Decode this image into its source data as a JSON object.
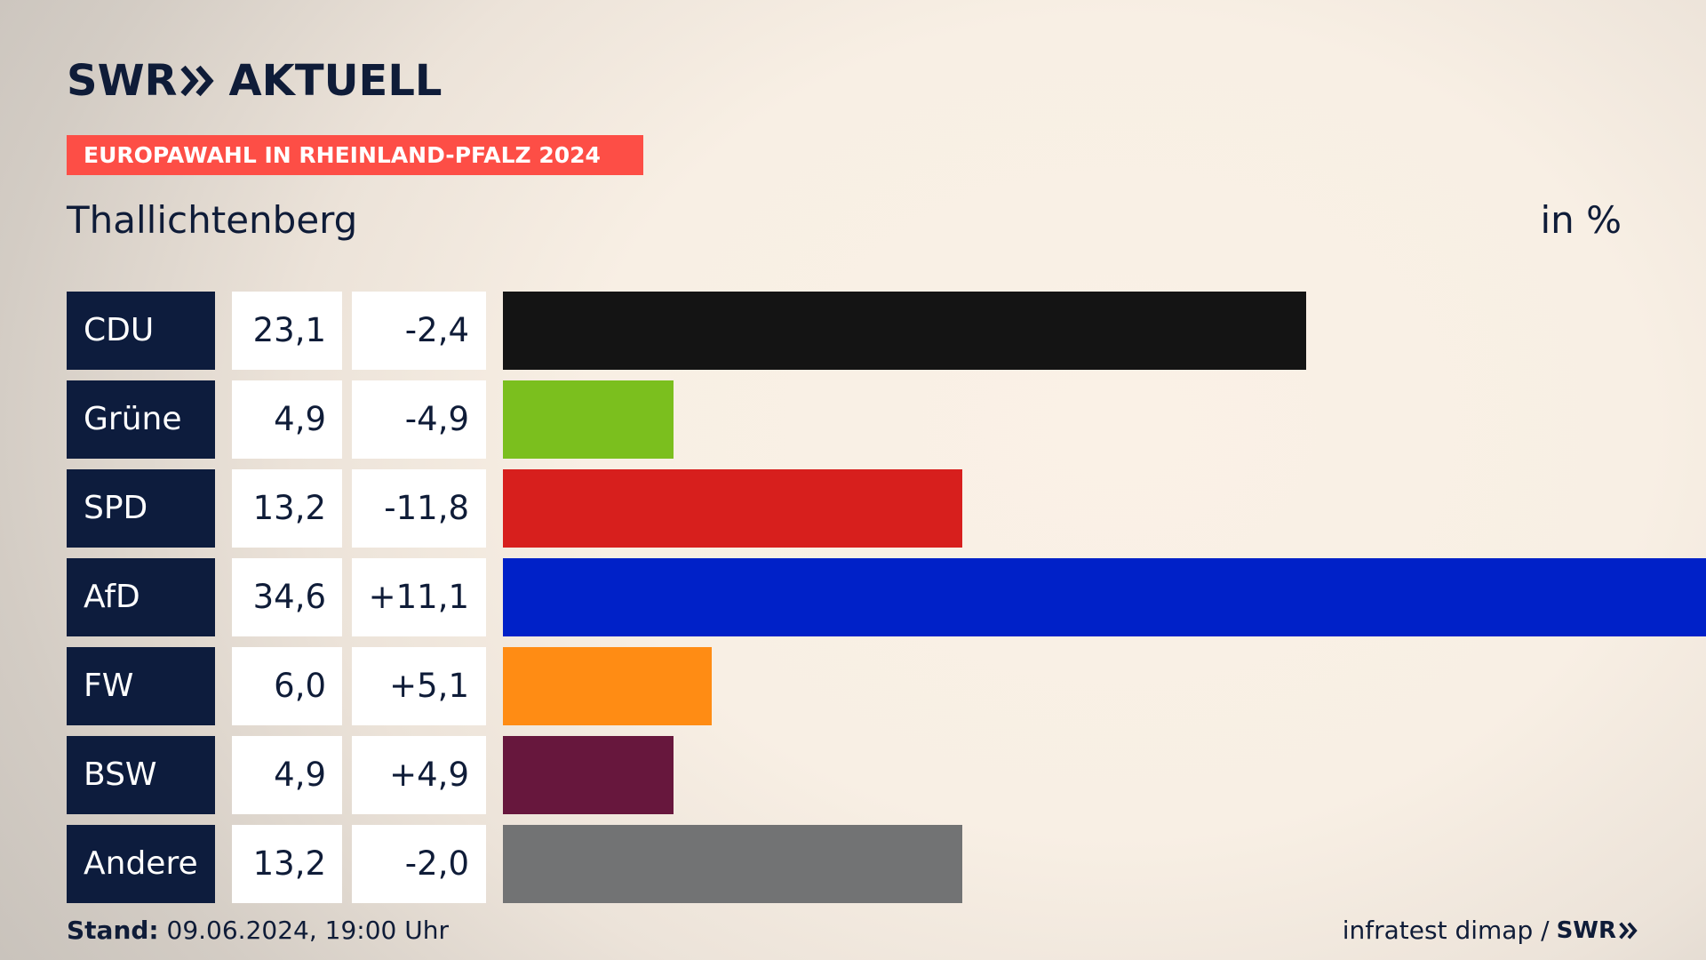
{
  "logo": {
    "brand": "SWR",
    "product": "AKTUELL"
  },
  "banner": "EUROPAWAHL IN RHEINLAND-PFALZ 2024",
  "place": "Thallichtenberg",
  "unit": "in %",
  "chart_data": {
    "type": "bar",
    "orientation": "horizontal",
    "title": "Thallichtenberg",
    "categories": [
      "CDU",
      "Grüne",
      "SPD",
      "AfD",
      "FW",
      "BSW",
      "Andere"
    ],
    "series": [
      {
        "values": [
          23.1,
          4.9,
          13.2,
          34.6,
          6.0,
          4.9,
          13.2
        ]
      }
    ],
    "values_label": [
      "23,1",
      "4,9",
      "13,2",
      "34,6",
      "6,0",
      "4,9",
      "13,2"
    ],
    "diffs": [
      -2.4,
      -4.9,
      -11.8,
      11.1,
      5.1,
      4.9,
      -2.0
    ],
    "diffs_label": [
      "-2,4",
      "-4,9",
      "-11,8",
      "+11,1",
      "+5,1",
      "+4,9",
      "-2,0"
    ],
    "colors": [
      "#141414",
      "#7bbf1e",
      "#d71f1d",
      "#0021c8",
      "#ff8c14",
      "#67173d",
      "#727374"
    ],
    "xlim": [
      0,
      34.6
    ],
    "grid": false,
    "legend": "none"
  },
  "footer": {
    "stand_label": "Stand:",
    "stand_value": " 09.06.2024, 19:00 Uhr",
    "source": "infratest dimap /",
    "source_logo": "SWR"
  }
}
